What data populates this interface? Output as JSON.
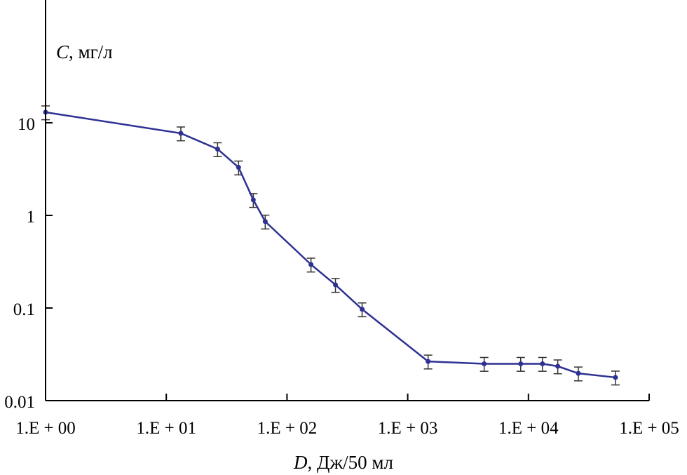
{
  "chart_data": {
    "type": "line",
    "title": "",
    "ylabel": {
      "var": "C",
      "unit": ", мг/л"
    },
    "xlabel": {
      "var": "D",
      "unit": ", Дж/50 мл"
    },
    "xscale": "log",
    "yscale": "log",
    "xlim": [
      1,
      100000
    ],
    "ylim": [
      0.01,
      215
    ],
    "x_ticks": [
      {
        "value": 1,
        "label": "1.E + 00"
      },
      {
        "value": 10,
        "label": "1.E + 01"
      },
      {
        "value": 100,
        "label": "1.E + 02"
      },
      {
        "value": 1000,
        "label": "1.E + 03"
      },
      {
        "value": 10000,
        "label": "1.E + 04"
      },
      {
        "value": 100000,
        "label": "1.E + 05"
      }
    ],
    "y_ticks": [
      {
        "value": 0.01,
        "label": "0.01"
      },
      {
        "value": 0.1,
        "label": "0.1"
      },
      {
        "value": 1,
        "label": "1"
      },
      {
        "value": 10,
        "label": "10"
      }
    ],
    "grid": false,
    "series": [
      {
        "name": "C",
        "color": "#2e3192",
        "error_fraction": 0.17,
        "x": [
          1,
          13.2,
          26.6,
          39.7,
          52.6,
          66,
          158,
          252,
          419,
          1475,
          4300,
          8630,
          13060,
          17500,
          25900,
          52600
        ],
        "y": [
          13,
          7.7,
          5.2,
          3.3,
          1.47,
          0.86,
          0.295,
          0.178,
          0.097,
          0.0265,
          0.025,
          0.025,
          0.025,
          0.0235,
          0.0197,
          0.0178
        ]
      }
    ]
  }
}
